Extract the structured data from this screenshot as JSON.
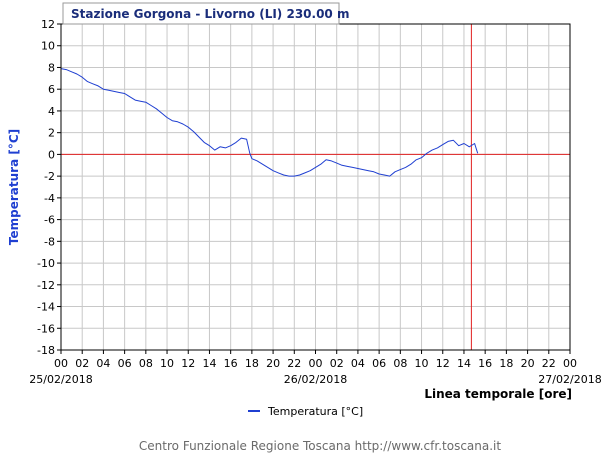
{
  "chart_data": {
    "type": "line",
    "title": "Stazione Gorgona - Livorno (LI) 230.00 m",
    "ylabel": "Temperatura [°C]",
    "xlabel": "Linea temporale [ore]",
    "ylim": [
      -18,
      12
    ],
    "xlim": [
      0,
      48
    ],
    "yticks": [
      "12",
      "10",
      "8",
      "6",
      "4",
      "2",
      "0",
      "-2",
      "-4",
      "-6",
      "-8",
      "-10",
      "-12",
      "-14",
      "-16",
      "-18"
    ],
    "xticks": [
      "00",
      "02",
      "04",
      "06",
      "08",
      "10",
      "12",
      "14",
      "16",
      "18",
      "20",
      "22",
      "00",
      "02",
      "04",
      "06",
      "08",
      "10",
      "12",
      "14",
      "16",
      "18",
      "20",
      "22",
      "00"
    ],
    "dates": [
      "25/02/2018",
      "26/02/2018",
      "27/02/2018"
    ],
    "grid": true,
    "zero_line": 0,
    "current_time_marker": 38.7,
    "legend_position": "bottom-center",
    "colors": {
      "series": "#1f3fd1",
      "reference": "#e02020",
      "grid": "#c8c8c8",
      "title_box": "#9a9a9a"
    },
    "series": [
      {
        "name": "Temperatura [°C]",
        "x": [
          0,
          0.5,
          1,
          1.5,
          2,
          2.5,
          3,
          3.5,
          4,
          4.5,
          5,
          5.5,
          6,
          6.5,
          7,
          7.5,
          8,
          8.5,
          9,
          9.5,
          10,
          10.5,
          11,
          11.5,
          12,
          12.5,
          13,
          13.5,
          14,
          14.5,
          15,
          15.5,
          16,
          16.5,
          17,
          17.5,
          17.8,
          18,
          18.5,
          19,
          19.5,
          20,
          20.5,
          21,
          21.5,
          22,
          22.5,
          23,
          23.5,
          24,
          24.5,
          25,
          25.5,
          26,
          26.5,
          27,
          27.5,
          28,
          28.5,
          29,
          29.5,
          30,
          30.5,
          31,
          31.5,
          32,
          32.5,
          33,
          33.5,
          34,
          34.5,
          35,
          35.5,
          36,
          36.5,
          37,
          37.5,
          38,
          38.5,
          39,
          39.3
        ],
        "y": [
          7.9,
          7.8,
          7.6,
          7.4,
          7.1,
          6.7,
          6.5,
          6.3,
          6.0,
          5.9,
          5.8,
          5.7,
          5.6,
          5.3,
          5.0,
          4.9,
          4.8,
          4.5,
          4.2,
          3.8,
          3.4,
          3.1,
          3.0,
          2.8,
          2.5,
          2.1,
          1.6,
          1.1,
          0.8,
          0.4,
          0.7,
          0.6,
          0.8,
          1.1,
          1.5,
          1.4,
          0.1,
          -0.4,
          -0.6,
          -0.9,
          -1.2,
          -1.5,
          -1.7,
          -1.9,
          -2.0,
          -2.0,
          -1.9,
          -1.7,
          -1.5,
          -1.2,
          -0.9,
          -0.5,
          -0.6,
          -0.8,
          -1.0,
          -1.1,
          -1.2,
          -1.3,
          -1.4,
          -1.5,
          -1.6,
          -1.8,
          -1.9,
          -2.0,
          -1.6,
          -1.4,
          -1.2,
          -0.9,
          -0.5,
          -0.3,
          0.1,
          0.4,
          0.6,
          0.9,
          1.2,
          1.3,
          0.8,
          1.0,
          0.7,
          1.0,
          0.1
        ]
      }
    ]
  },
  "footer": "Centro Funzionale Regione Toscana http://www.cfr.toscana.it"
}
